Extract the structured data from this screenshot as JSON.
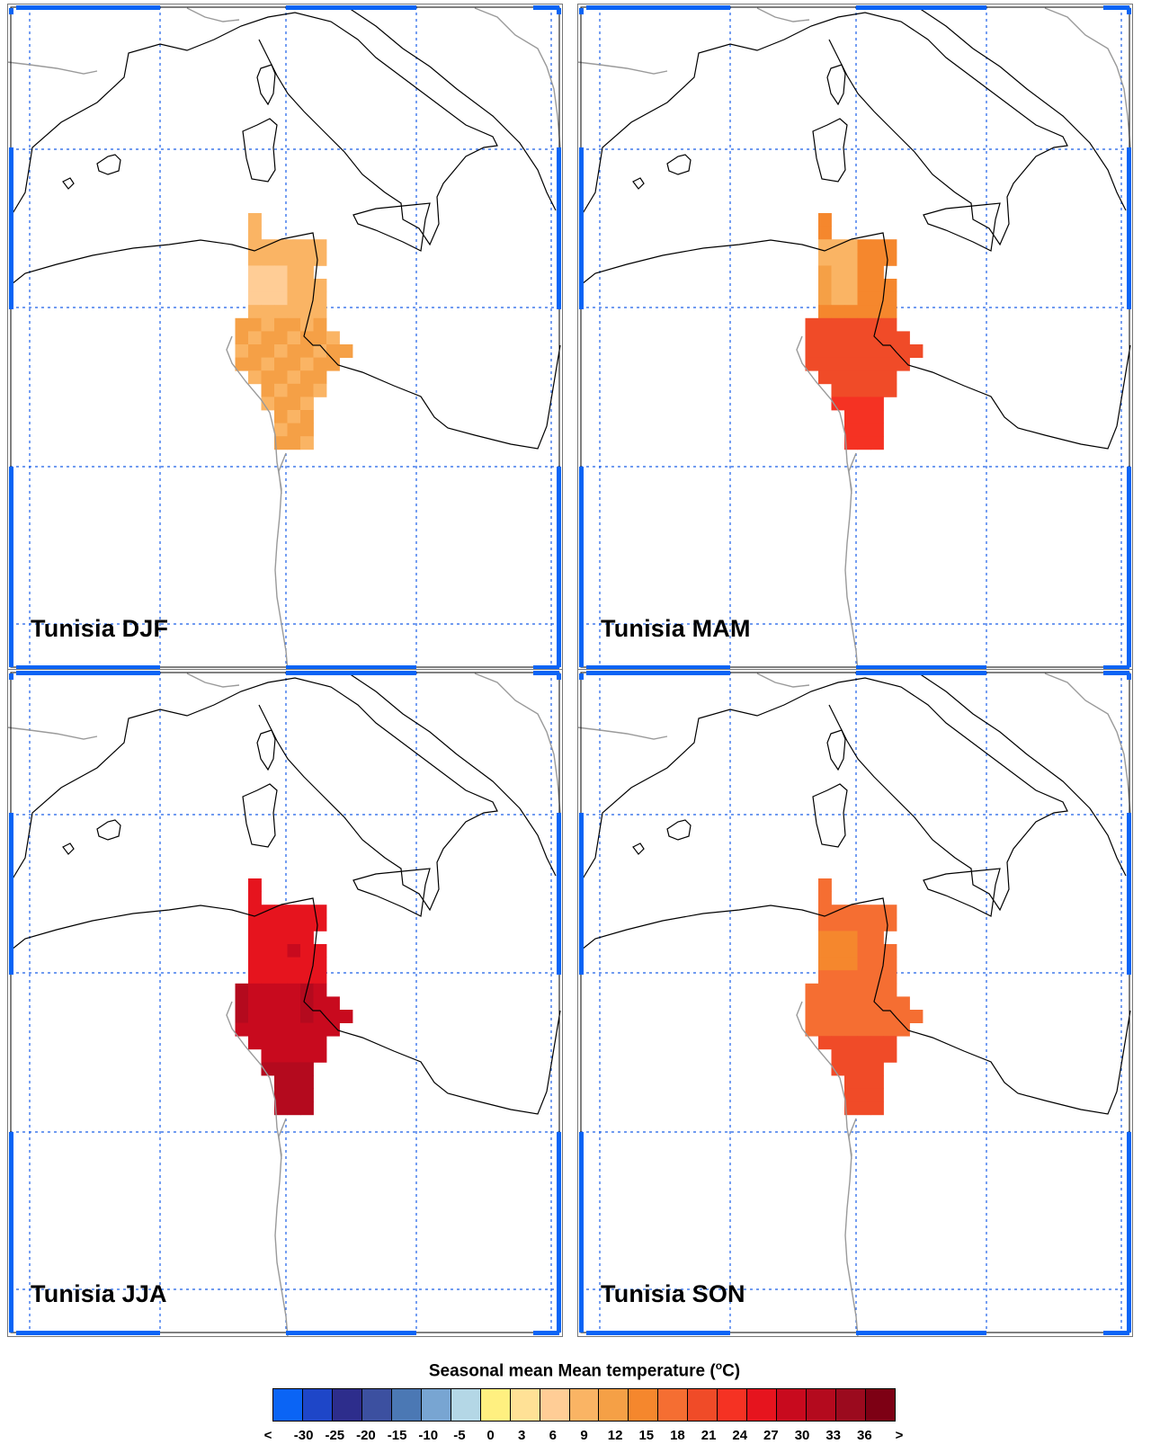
{
  "panels": [
    {
      "label": "Tunisia DJF"
    },
    {
      "label": "Tunisia MAM"
    },
    {
      "label": "Tunisia JJA"
    },
    {
      "label": "Tunisia SON"
    }
  ],
  "legend": {
    "title_main": "Seasonal mean Mean temperature (",
    "title_sup": "o",
    "title_end": "C)",
    "ticks": [
      "<",
      "-30",
      "-25",
      "-20",
      "-15",
      "-10",
      "-5",
      "0",
      "3",
      "6",
      "9",
      "12",
      "15",
      "18",
      "21",
      "24",
      "27",
      "30",
      "33",
      "36",
      ">"
    ],
    "colors": [
      "#0a64f5",
      "#1e46c8",
      "#2d2d8c",
      "#3c50a0",
      "#4b78b4",
      "#78a5d2",
      "#b4d7e6",
      "#fff080",
      "#ffe196",
      "#ffcd96",
      "#fab464",
      "#f5a046",
      "#f5872d",
      "#f56e32",
      "#f04b28",
      "#f53223",
      "#e6141e",
      "#c80a1e",
      "#b40a1e",
      "#9b0a1e",
      "#7d0014"
    ]
  },
  "chart_data": {
    "type": "heatmap",
    "title": "Seasonal mean Mean temperature (oC)",
    "series": [
      {
        "name": "Tunisia DJF",
        "dominant_color": "#f5a046",
        "range_C": [
          9,
          15
        ]
      },
      {
        "name": "Tunisia MAM",
        "dominant_color": "#f04b28",
        "range_C": [
          12,
          24
        ]
      },
      {
        "name": "Tunisia JJA",
        "dominant_color": "#c80a1e",
        "range_C": [
          24,
          33
        ]
      },
      {
        "name": "Tunisia SON",
        "dominant_color": "#f04b28",
        "range_C": [
          15,
          24
        ]
      }
    ]
  }
}
